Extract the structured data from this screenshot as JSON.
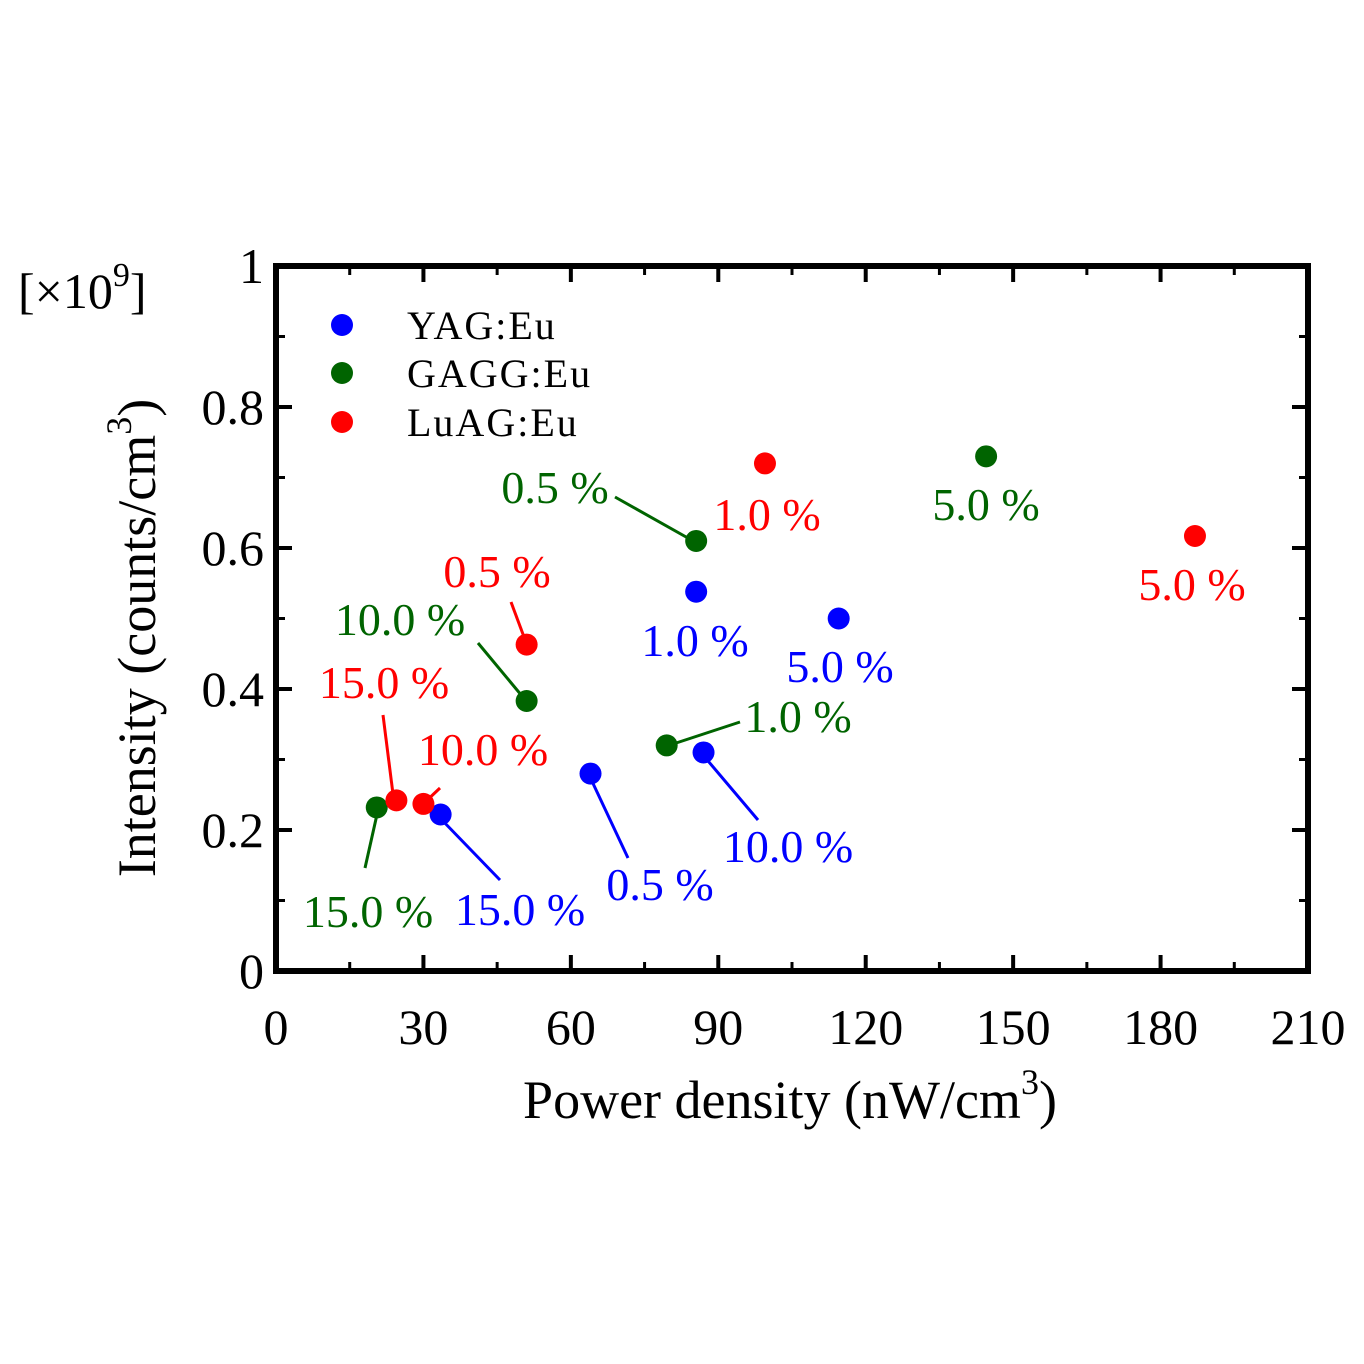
{
  "chart_data": {
    "type": "scatter",
    "xlabel": "Power density (nW/cm",
    "xlabel_sup": "3",
    "xlabel_end": ")",
    "ylabel": "Intensity (counts/cm",
    "ylabel_sup": "3",
    "ylabel_end": ")",
    "multiplier": "[×10",
    "multiplier_sup": "9",
    "multiplier_end": "]",
    "xlim": [
      0,
      210
    ],
    "ylim": [
      0,
      1
    ],
    "xticks": [
      0,
      30,
      60,
      90,
      120,
      150,
      180,
      210
    ],
    "xtick_labels": [
      "0",
      "30",
      "60",
      "90",
      "120",
      "150",
      "180",
      "210"
    ],
    "yticks": [
      0,
      0.2,
      0.4,
      0.6,
      0.8,
      1
    ],
    "ytick_labels": [
      "0",
      "0.2",
      "0.4",
      "0.6",
      "0.8",
      "1"
    ],
    "legend_position": "top-left",
    "series": [
      {
        "name": "YAG:Eu",
        "color": "#0000ff",
        "points": [
          {
            "x": 64,
            "y": 0.28,
            "label": "0.5 %"
          },
          {
            "x": 85.5,
            "y": 0.538,
            "label": "1.0 %"
          },
          {
            "x": 114.5,
            "y": 0.5,
            "label": "5.0 %"
          },
          {
            "x": 87,
            "y": 0.31,
            "label": "10.0 %"
          },
          {
            "x": 33.5,
            "y": 0.222,
            "label": "15.0 %"
          }
        ]
      },
      {
        "name": "GAGG:Eu",
        "color": "#006400",
        "points": [
          {
            "x": 85.5,
            "y": 0.61,
            "label": "0.5 %"
          },
          {
            "x": 79.5,
            "y": 0.32,
            "label": "1.0 %"
          },
          {
            "x": 144.5,
            "y": 0.73,
            "label": "5.0 %"
          },
          {
            "x": 51,
            "y": 0.383,
            "label": "10.0 %"
          },
          {
            "x": 20.5,
            "y": 0.232,
            "label": "15.0 %"
          }
        ]
      },
      {
        "name": "LuAG:Eu",
        "color": "#ff0000",
        "points": [
          {
            "x": 51,
            "y": 0.463,
            "label": "0.5 %"
          },
          {
            "x": 99.5,
            "y": 0.72,
            "label": "1.0 %"
          },
          {
            "x": 187,
            "y": 0.617,
            "label": "5.0 %"
          },
          {
            "x": 30,
            "y": 0.237,
            "label": "10.0 %"
          },
          {
            "x": 24.5,
            "y": 0.242,
            "label": "15.0 %"
          }
        ]
      }
    ]
  }
}
